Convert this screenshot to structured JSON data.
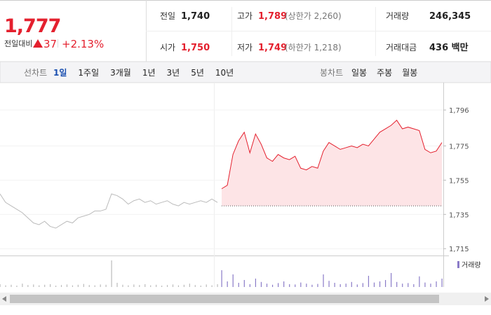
{
  "quote": {
    "price": "1,777",
    "change_label": "전일대비",
    "change": "37",
    "change_rate": "+2.13%"
  },
  "summary": [
    [
      {
        "label": "전일",
        "value": "1,740"
      },
      {
        "label": "고가",
        "value": "1,789",
        "note": "(상한가 2,260)"
      },
      {
        "label": "거래량",
        "value": "246,345"
      }
    ],
    [
      {
        "label": "시가",
        "value": "1,750"
      },
      {
        "label": "저가",
        "value": "1,749",
        "note": "(하한가 1,218)"
      },
      {
        "label": "거래대금",
        "value": "436 백만"
      }
    ]
  ],
  "tabs": {
    "line_label": "선차트",
    "line": [
      "1일",
      "1주일",
      "3개월",
      "1년",
      "3년",
      "5년",
      "10년"
    ],
    "candle_label": "봉차트",
    "candle": [
      "일봉",
      "주봉",
      "월봉"
    ]
  },
  "chart": {
    "ylim": [
      1711,
      1812
    ],
    "yticks": [
      {
        "value": 1796,
        "label": "1,796"
      },
      {
        "value": 1775,
        "label": "1,775"
      },
      {
        "value": 1755,
        "label": "1,755"
      },
      {
        "value": 1735,
        "label": "1,735"
      },
      {
        "value": 1715,
        "label": "1,715"
      }
    ],
    "baseline": 1740,
    "up_color": "#e4202e",
    "prev_color": "#bbbbbb",
    "fill_color": "#fde4e6",
    "previous": [
      1747,
      1742,
      1740,
      1738,
      1736,
      1733,
      1730,
      1729,
      1731,
      1728,
      1727,
      1729,
      1731,
      1730,
      1733,
      1734,
      1735,
      1737,
      1737,
      1738,
      1747,
      1746,
      1744,
      1741,
      1743,
      1744,
      1742,
      1743,
      1741,
      1742,
      1743,
      1741,
      1740,
      1742,
      1741,
      1742,
      1743,
      1742,
      1744,
      1742
    ],
    "today": [
      1750,
      1752,
      1770,
      1778,
      1783,
      1771,
      1782,
      1776,
      1768,
      1766,
      1770,
      1768,
      1767,
      1769,
      1762,
      1761,
      1763,
      1762,
      1772,
      1777,
      1775,
      1773,
      1774,
      1775,
      1774,
      1776,
      1775,
      1779,
      1783,
      1785,
      1787,
      1790,
      1785,
      1786,
      1785,
      1784,
      1773,
      1771,
      1772,
      1777
    ],
    "volume_label": "거래량",
    "volume_ylim": [
      0,
      100
    ],
    "volume_color": "#8a7bc8",
    "volume_previous": [
      10,
      6,
      8,
      5,
      12,
      7,
      9,
      6,
      8,
      10,
      5,
      7,
      9,
      6,
      8,
      11,
      7,
      6,
      9,
      8,
      95,
      15,
      8,
      6,
      9,
      7,
      10,
      6,
      8,
      5,
      7,
      9,
      6,
      8,
      12,
      7,
      5,
      9,
      6,
      10
    ],
    "volume_today": [
      60,
      20,
      45,
      15,
      25,
      10,
      30,
      18,
      12,
      8,
      14,
      20,
      10,
      9,
      16,
      12,
      8,
      11,
      45,
      22,
      15,
      10,
      12,
      18,
      9,
      14,
      40,
      16,
      20,
      25,
      50,
      18,
      12,
      14,
      10,
      38,
      16,
      12,
      20,
      30
    ]
  }
}
